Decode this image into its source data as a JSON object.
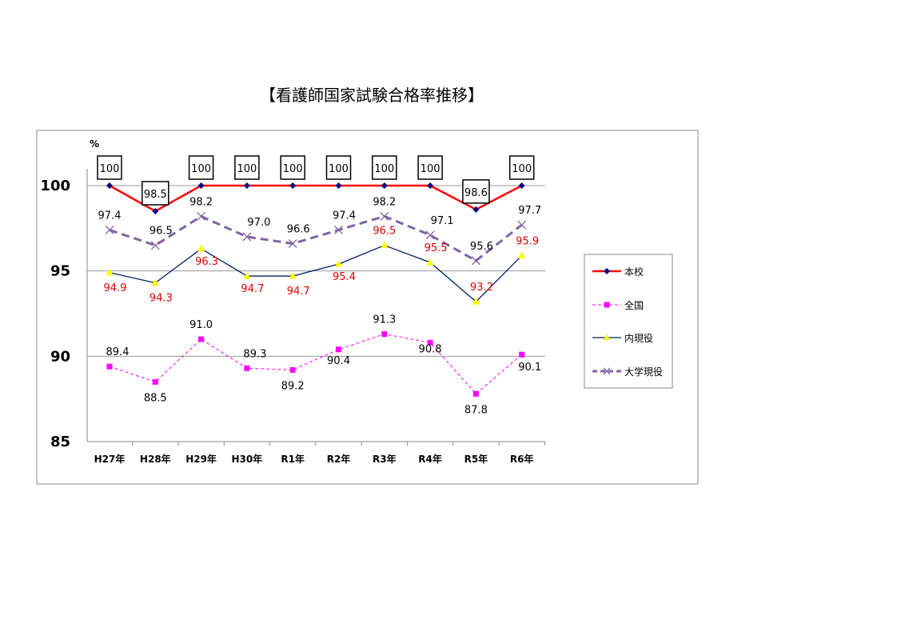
{
  "title": "【看護師国家試験合格率推移】",
  "chart_data": {
    "type": "line",
    "title": "【看護師国家試験合格率推移】",
    "ylabel": "%",
    "xlabel": "",
    "ylim": [
      85,
      100
    ],
    "yticks": [
      85,
      90,
      95,
      100
    ],
    "grid": true,
    "legend_position": "right",
    "categories": [
      "H27年",
      "H28年",
      "H29年",
      "H30年",
      "R1年",
      "R2年",
      "R3年",
      "R4年",
      "R5年",
      "R6年"
    ],
    "series": [
      {
        "name": "本校",
        "color": "#ff0000",
        "marker": "diamond",
        "marker_color": "#000080",
        "line": "solid-thick",
        "label_color": "#000000",
        "label_box": true,
        "values": [
          100,
          98.5,
          100,
          100,
          100,
          100,
          100,
          100,
          98.6,
          100
        ],
        "labels": [
          "100",
          "98.5",
          "100",
          "100",
          "100",
          "100",
          "100",
          "100",
          "98.6",
          "100"
        ]
      },
      {
        "name": "全国",
        "color": "#ff00ff",
        "marker": "square",
        "marker_color": "#ff00ff",
        "line": "dashed-thin",
        "label_color": "#000000",
        "values": [
          89.4,
          88.5,
          91.0,
          89.3,
          89.2,
          90.4,
          91.3,
          90.8,
          87.8,
          90.1
        ],
        "labels": [
          "89.4",
          "88.5",
          "91.0",
          "89.3",
          "89.2",
          "90.4",
          "91.3",
          "90.8",
          "87.8",
          "90.1"
        ]
      },
      {
        "name": "内現役",
        "color": "#002060",
        "marker": "triangle",
        "marker_color": "#ffff00",
        "line": "solid-thin",
        "label_color": "#e00000",
        "values": [
          94.9,
          94.3,
          96.3,
          94.7,
          94.7,
          95.4,
          96.5,
          95.5,
          93.2,
          95.9
        ],
        "labels": [
          "94.9",
          "94.3",
          "96.3",
          "94.7",
          "94.7",
          "95.4",
          "96.5",
          "95.5",
          "93.2",
          "95.9"
        ]
      },
      {
        "name": "大学現役",
        "color": "#8064a2",
        "marker": "x",
        "marker_color": "#8064a2",
        "line": "dashed-thick",
        "label_color": "#000000",
        "values": [
          97.4,
          96.5,
          98.2,
          97.0,
          96.6,
          97.4,
          98.2,
          97.1,
          95.6,
          97.7
        ],
        "labels": [
          "97.4",
          "96.5",
          "98.2",
          "97.0",
          "96.6",
          "97.4",
          "98.2",
          "97.1",
          "95.6",
          "97.7"
        ]
      }
    ]
  }
}
